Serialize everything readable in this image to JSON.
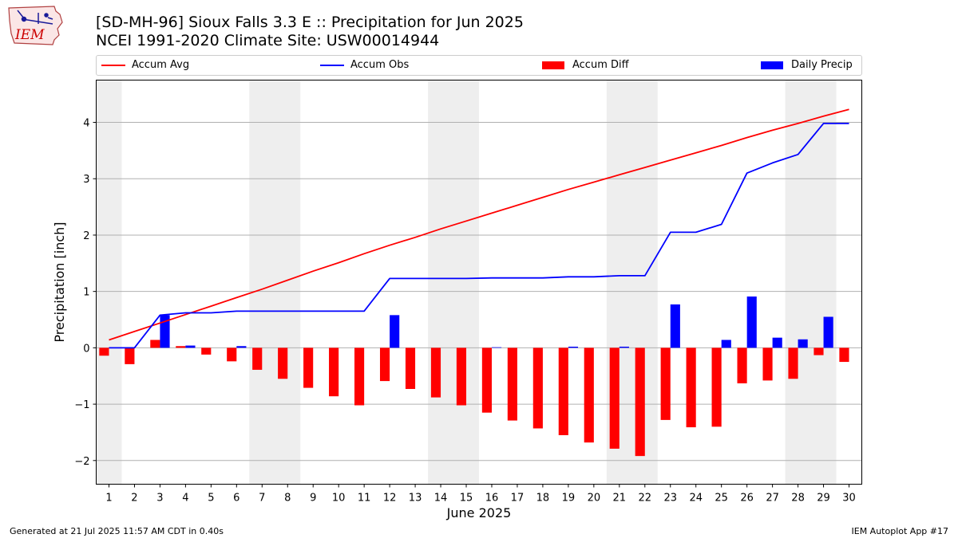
{
  "logo": {
    "text": "IEM",
    "color": "#cc0000"
  },
  "header": {
    "title_line1": "[SD-MH-96] Sioux Falls 3.3 E :: Precipitation for Jun 2025",
    "title_line2": "NCEI 1991-2020 Climate Site: USW00014944"
  },
  "legend": {
    "items": [
      {
        "label": "Accum Avg",
        "color": "#ff0000",
        "kind": "line"
      },
      {
        "label": "Accum Obs",
        "color": "#0000ff",
        "kind": "line"
      },
      {
        "label": "Accum Diff",
        "color": "#ff0000",
        "kind": "bar"
      },
      {
        "label": "Daily Precip",
        "color": "#0000ff",
        "kind": "bar"
      }
    ]
  },
  "footer": {
    "left": "Generated at 21 Jul 2025 11:57 AM CDT in 0.40s",
    "right": "IEM Autoplot App #17"
  },
  "chart_data": {
    "type": "bar",
    "xlabel": "June 2025",
    "ylabel": "Precipitation [inch]",
    "ylim": [
      -2.42,
      4.75
    ],
    "xlim": [
      0.5,
      30.5
    ],
    "yticks": [
      -2,
      -1,
      0,
      1,
      2,
      3,
      4
    ],
    "ytick_labels": [
      "−2",
      "−1",
      "0",
      "1",
      "2",
      "3",
      "4"
    ],
    "grid": "horizontal",
    "weekend_shading": [
      [
        0.5,
        1.5
      ],
      [
        6.5,
        8.5
      ],
      [
        13.5,
        15.5
      ],
      [
        20.5,
        22.5
      ],
      [
        27.5,
        29.5
      ]
    ],
    "categories": [
      "1",
      "2",
      "3",
      "4",
      "5",
      "6",
      "7",
      "8",
      "9",
      "10",
      "11",
      "12",
      "13",
      "14",
      "15",
      "16",
      "17",
      "18",
      "19",
      "20",
      "21",
      "22",
      "23",
      "24",
      "25",
      "26",
      "27",
      "28",
      "29",
      "30"
    ],
    "series": [
      {
        "name": "Accum Avg",
        "kind": "line",
        "color": "#ff0000",
        "values": [
          0.14,
          0.29,
          0.44,
          0.59,
          0.74,
          0.89,
          1.04,
          1.2,
          1.36,
          1.51,
          1.67,
          1.82,
          1.96,
          2.11,
          2.25,
          2.39,
          2.53,
          2.67,
          2.81,
          2.94,
          3.07,
          3.2,
          3.33,
          3.46,
          3.59,
          3.73,
          3.86,
          3.98,
          4.11,
          4.23
        ]
      },
      {
        "name": "Accum Obs",
        "kind": "line",
        "color": "#0000ff",
        "values": [
          0.0,
          0.0,
          0.58,
          0.62,
          0.62,
          0.65,
          0.65,
          0.65,
          0.65,
          0.65,
          0.65,
          1.23,
          1.23,
          1.23,
          1.23,
          1.24,
          1.24,
          1.24,
          1.26,
          1.26,
          1.28,
          1.28,
          2.05,
          2.05,
          2.19,
          3.1,
          3.28,
          3.43,
          3.98,
          3.98
        ]
      },
      {
        "name": "Accum Diff",
        "kind": "bar",
        "color": "#ff0000",
        "values": [
          -0.14,
          -0.29,
          0.14,
          0.03,
          -0.12,
          -0.24,
          -0.39,
          -0.55,
          -0.71,
          -0.86,
          -1.02,
          -0.59,
          -0.73,
          -0.88,
          -1.02,
          -1.15,
          -1.29,
          -1.43,
          -1.55,
          -1.68,
          -1.79,
          -1.92,
          -1.28,
          -1.41,
          -1.4,
          -0.63,
          -0.58,
          -0.55,
          -0.13,
          -0.25
        ]
      },
      {
        "name": "Daily Precip",
        "kind": "bar",
        "color": "#0000ff",
        "values": [
          0.0,
          0.0,
          0.58,
          0.04,
          0.0,
          0.03,
          0.0,
          0.0,
          0.0,
          0.0,
          0.0,
          0.58,
          0.0,
          0.0,
          0.0,
          0.01,
          0.0,
          0.0,
          0.02,
          0.0,
          0.02,
          0.0,
          0.77,
          0.0,
          0.14,
          0.91,
          0.18,
          0.15,
          0.55,
          0.0
        ]
      }
    ]
  }
}
